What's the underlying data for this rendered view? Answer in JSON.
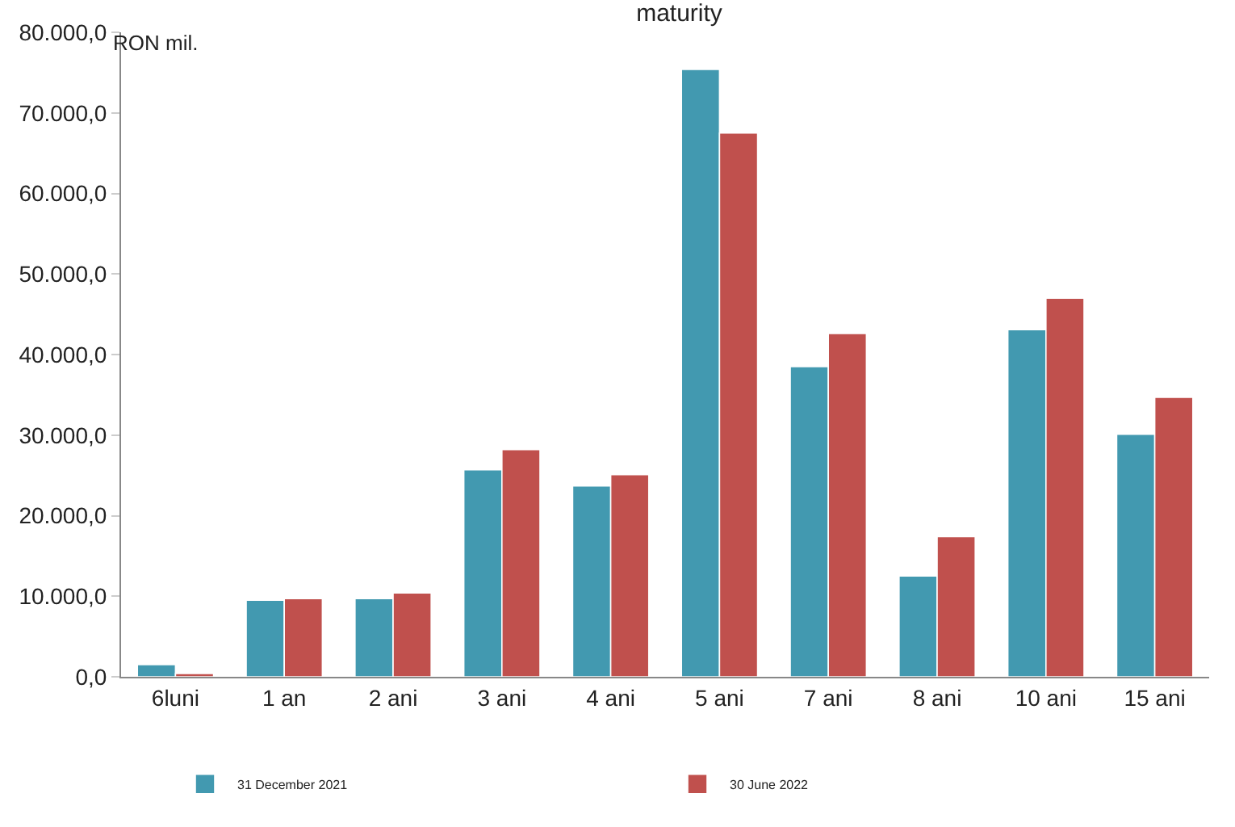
{
  "chart_data": {
    "type": "bar",
    "title": "maturity",
    "ylabel": "RON mil.",
    "categories": [
      "6luni",
      "1 an",
      "2 ani",
      "3 ani",
      "4 ani",
      "5 ani",
      "7 ani",
      "8 ani",
      "10 ani",
      "15 ani"
    ],
    "series": [
      {
        "name": "31 December 2021",
        "color": "#4299b0",
        "values": [
          1500,
          9500,
          9700,
          25700,
          23700,
          75400,
          38500,
          12500,
          43100,
          30100
        ]
      },
      {
        "name": "30 June 2022",
        "color": "#c0504d",
        "values": [
          400,
          9700,
          10400,
          28200,
          25100,
          67500,
          42600,
          17400,
          47000,
          34700
        ]
      }
    ],
    "ylim": [
      0,
      80000
    ],
    "yticks": [
      {
        "value": 0,
        "label": "0,0"
      },
      {
        "value": 10000,
        "label": "10.000,0"
      },
      {
        "value": 20000,
        "label": "20.000,0"
      },
      {
        "value": 30000,
        "label": "30.000,0"
      },
      {
        "value": 40000,
        "label": "40.000,0"
      },
      {
        "value": 50000,
        "label": "50.000,0"
      },
      {
        "value": 60000,
        "label": "60.000,0"
      },
      {
        "value": 70000,
        "label": "70.000,0"
      },
      {
        "value": 80000,
        "label": "80.000,0"
      }
    ],
    "legend": "bottom"
  }
}
